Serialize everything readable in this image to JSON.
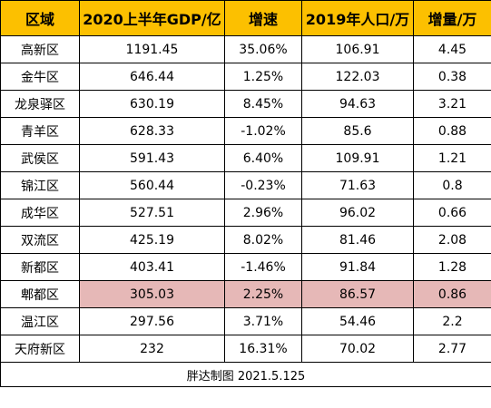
{
  "headers": [
    "区域",
    "2020上半年GDP/亿",
    "增速",
    "2019年人口/万",
    "增量/万"
  ],
  "rows": [
    {
      "area": "高新区",
      "gdp": "1191.45",
      "growth": "35.06%",
      "population": "106.91",
      "increase": "4.45"
    },
    {
      "area": "金牛区",
      "gdp": "646.44",
      "growth": "1.25%",
      "population": "122.03",
      "increase": "0.38"
    },
    {
      "area": "龙泉驿区",
      "gdp": "630.19",
      "growth": "8.45%",
      "population": "94.63",
      "increase": "3.21"
    },
    {
      "area": "青羊区",
      "gdp": "628.33",
      "growth": "-1.02%",
      "population": "85.6",
      "increase": "0.88"
    },
    {
      "area": "武侯区",
      "gdp": "591.43",
      "growth": "6.40%",
      "population": "109.91",
      "increase": "1.21"
    },
    {
      "area": "锦江区",
      "gdp": "560.44",
      "growth": "-0.23%",
      "population": "71.63",
      "increase": "0.8"
    },
    {
      "area": "成华区",
      "gdp": "527.51",
      "growth": "2.96%",
      "population": "96.02",
      "increase": "0.66"
    },
    {
      "area": "双流区",
      "gdp": "425.19",
      "growth": "8.02%",
      "population": "81.46",
      "increase": "2.08"
    },
    {
      "area": "新都区",
      "gdp": "403.41",
      "growth": "-1.46%",
      "population": "91.84",
      "increase": "1.28"
    },
    {
      "area": "郫都区",
      "gdp": "305.03",
      "growth": "2.25%",
      "population": "86.57",
      "increase": "0.86"
    },
    {
      "area": "温江区",
      "gdp": "297.56",
      "growth": "3.71%",
      "population": "54.46",
      "increase": "2.2"
    },
    {
      "area": "天府新区",
      "gdp": "232",
      "growth": "16.31%",
      "population": "70.02",
      "increase": "2.77"
    }
  ],
  "highlight_row": 9,
  "colors": {
    "header_fill": "#fcc000",
    "highlight_fill": "#e6b8b7",
    "border": "#000000"
  },
  "footer": "胖达制图 2021.5.125"
}
